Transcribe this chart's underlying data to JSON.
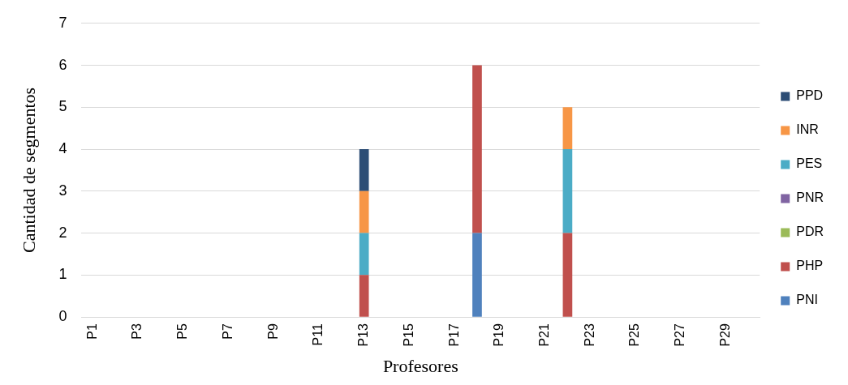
{
  "chart_data": {
    "type": "bar",
    "stacked": true,
    "xlabel": "Profesores",
    "ylabel": "Cantidad de segmentos",
    "categories": [
      "P1",
      null,
      "P3",
      null,
      "P5",
      null,
      "P7",
      null,
      "P9",
      null,
      "P11",
      null,
      "P13",
      null,
      "P15",
      null,
      "P17",
      null,
      "P19",
      null,
      "P21",
      null,
      "P23",
      null,
      "P25",
      null,
      "P27",
      null,
      "P29",
      null
    ],
    "series": [
      {
        "name": "PNI",
        "color": "#4f81bd",
        "values": [
          0,
          0,
          0,
          0,
          0,
          0,
          0,
          0,
          0,
          0,
          0,
          0,
          0,
          0,
          0,
          0,
          0,
          2,
          0,
          0,
          0,
          0,
          0,
          0,
          0,
          0,
          0,
          0,
          0,
          0
        ]
      },
      {
        "name": "PHP",
        "color": "#c0504d",
        "values": [
          0,
          0,
          0,
          0,
          0,
          0,
          0,
          0,
          0,
          0,
          0,
          0,
          1,
          0,
          0,
          0,
          0,
          4,
          0,
          0,
          0,
          2,
          0,
          0,
          0,
          0,
          0,
          0,
          0,
          0
        ]
      },
      {
        "name": "PDR",
        "color": "#9bbb59",
        "values": [
          0,
          0,
          0,
          0,
          0,
          0,
          0,
          0,
          0,
          0,
          0,
          0,
          0,
          0,
          0,
          0,
          0,
          0,
          0,
          0,
          0,
          0,
          0,
          0,
          0,
          0,
          0,
          0,
          0,
          0
        ]
      },
      {
        "name": "PNR",
        "color": "#8064a2",
        "values": [
          0,
          0,
          0,
          0,
          0,
          0,
          0,
          0,
          0,
          0,
          0,
          0,
          0,
          0,
          0,
          0,
          0,
          0,
          0,
          0,
          0,
          0,
          0,
          0,
          0,
          0,
          0,
          0,
          0,
          0
        ]
      },
      {
        "name": "PES",
        "color": "#4bacc6",
        "values": [
          0,
          0,
          0,
          0,
          0,
          0,
          0,
          0,
          0,
          0,
          0,
          0,
          1,
          0,
          0,
          0,
          0,
          0,
          0,
          0,
          0,
          2,
          0,
          0,
          0,
          0,
          0,
          0,
          0,
          0
        ]
      },
      {
        "name": "INR",
        "color": "#f79646",
        "values": [
          0,
          0,
          0,
          0,
          0,
          0,
          0,
          0,
          0,
          0,
          0,
          0,
          1,
          0,
          0,
          0,
          0,
          0,
          0,
          0,
          0,
          1,
          0,
          0,
          0,
          0,
          0,
          0,
          0,
          0
        ]
      },
      {
        "name": "PPD",
        "color": "#2c4d75",
        "values": [
          0,
          0,
          0,
          0,
          0,
          0,
          0,
          0,
          0,
          0,
          0,
          0,
          1,
          0,
          0,
          0,
          0,
          0,
          0,
          0,
          0,
          0,
          0,
          0,
          0,
          0,
          0,
          0,
          0,
          0
        ]
      }
    ],
    "ylim": [
      0,
      7
    ],
    "yticks": [
      0,
      1,
      2,
      3,
      4,
      5,
      6,
      7
    ],
    "grid": "y",
    "legend": "right"
  }
}
